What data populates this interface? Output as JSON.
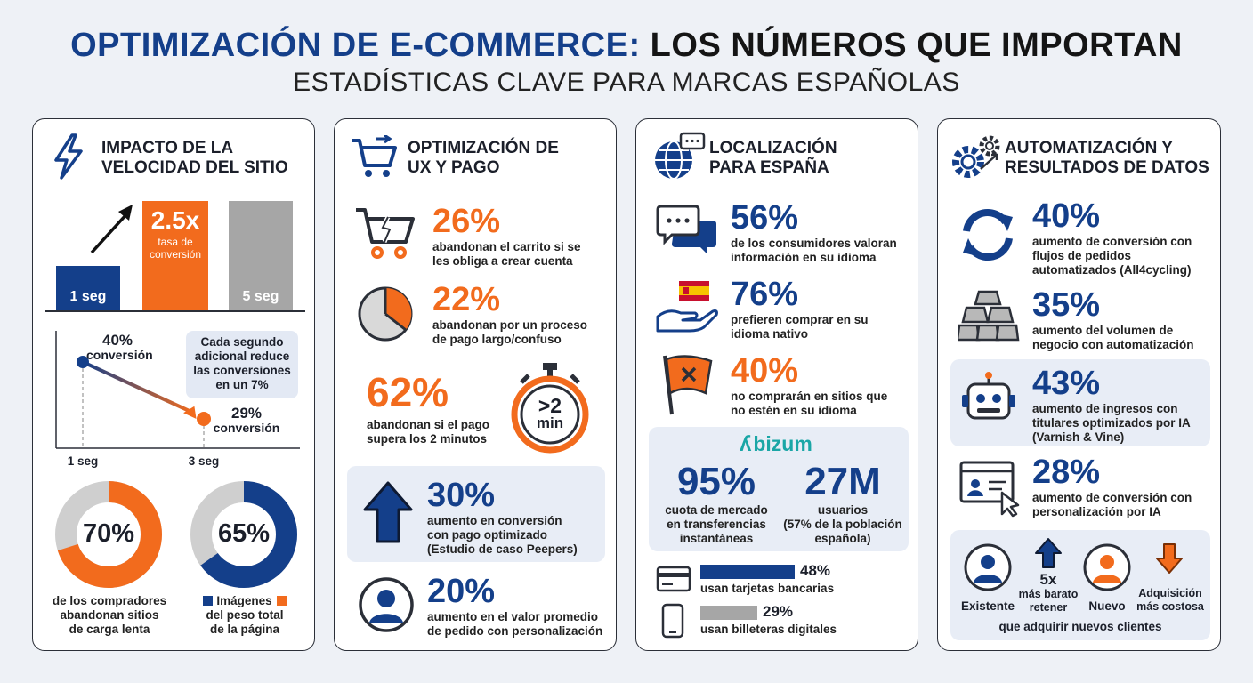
{
  "header": {
    "title_part1": "OPTIMIZACIÓN DE E-COMMERCE:",
    "title_part2": "LOS NÚMEROS QUE IMPORTAN",
    "subtitle": "ESTADÍSTICAS CLAVE PARA MARCAS ESPAÑOLAS"
  },
  "colors": {
    "blue": "#143f8a",
    "orange": "#f26b1d",
    "gray": "#a6a6a6"
  },
  "panel1": {
    "title_l1": "IMPACTO DE LA",
    "title_l2": "VELOCIDAD DEL SITIO",
    "icon": "lightning-icon",
    "bars": {
      "b1": "1 seg",
      "b2_value": "2.5x",
      "b2_l1": "tasa de",
      "b2_l2": "conversión",
      "b3": "5 seg"
    },
    "line": {
      "p1_value": "40%",
      "p1_label": "conversión",
      "p2_value": "29%",
      "p2_label": "conversión",
      "note_l1": "Cada segundo",
      "note_l2": "adicional reduce",
      "note_l3": "las conversiones",
      "note_l4": "en un 7%",
      "x1": "1 seg",
      "x2": "3 seg"
    },
    "donut1": {
      "value": "70%",
      "fraction": 0.7,
      "l1": "de los compradores",
      "l2": "abandonan sitios",
      "l3": "de carga lenta"
    },
    "donut2": {
      "value": "65%",
      "fraction": 0.65,
      "l1": "Imágenes",
      "l2": "del peso total",
      "l3": "de la página"
    }
  },
  "panel2": {
    "title_l1": "OPTIMIZACIÓN DE",
    "title_l2": "UX Y PAGO",
    "icon": "cart-icon",
    "s1": {
      "value": "26%",
      "l1": "abandonan el carrito si se",
      "l2": "les obliga a crear cuenta",
      "icon": "broken-cart-icon"
    },
    "s2": {
      "value": "22%",
      "l1": "abandonan por un proceso",
      "l2": "de pago largo/confuso",
      "icon": "pie-clock-icon"
    },
    "s3": {
      "value": "62%",
      "l1": "abandonan si el pago",
      "l2": "supera los 2 minutos",
      "icon": "stopwatch-icon",
      "timer_l1": ">2",
      "timer_l2": "min"
    },
    "s4": {
      "value": "30%",
      "l1": "aumento en conversión",
      "l2": "con pago optimizado",
      "l3": "(Estudio de caso Peepers)",
      "icon": "arrow-up-icon"
    },
    "s5": {
      "value": "20%",
      "l1": "aumento en el valor promedio",
      "l2": "de pedido con personalización",
      "icon": "user-icon"
    }
  },
  "panel3": {
    "title_l1": "LOCALIZACIÓN",
    "title_l2": "PARA ESPAÑA",
    "icon": "globe-chat-icon",
    "s1": {
      "value": "56%",
      "l1": "de los consumidores valoran",
      "l2": "información en su idioma",
      "icon": "chat-bubbles-icon"
    },
    "s2": {
      "value": "76%",
      "l1": "prefieren comprar en su",
      "l2": "idioma nativo",
      "icon": "hand-flag-icon"
    },
    "s3": {
      "value": "40%",
      "l1": "no comprarán en sitios que",
      "l2": "no estén en su idioma",
      "icon": "x-flag-icon"
    },
    "bizum": {
      "brand": "bizum",
      "v1": "95%",
      "v1_l1": "cuota de mercado",
      "v1_l2": "en transferencias",
      "v1_l3": "instantáneas",
      "v2": "27M",
      "v2_l1": "usuarios",
      "v2_l2": "(57% de la población",
      "v2_l3": "española)"
    },
    "pay1": {
      "value": "48%",
      "fraction": 0.48,
      "label": "usan tarjetas bancarias",
      "icon": "credit-card-icon"
    },
    "pay2": {
      "value": "29%",
      "fraction": 0.29,
      "label": "usan billeteras digitales",
      "icon": "smartphone-icon"
    }
  },
  "panel4": {
    "title_l1": "AUTOMATIZACIÓN Y",
    "title_l2": "RESULTADOS DE DATOS",
    "icon": "gears-icon",
    "s1": {
      "value": "40%",
      "l1": "aumento de conversión con",
      "l2": "flujos de pedidos",
      "l3": "automatizados (All4cycling)",
      "icon": "refresh-icon"
    },
    "s2": {
      "value": "35%",
      "l1": "aumento del volumen de",
      "l2": "negocio con automatización",
      "icon": "gold-bars-icon"
    },
    "s3": {
      "value": "43%",
      "l1": "aumento de ingresos con",
      "l2": "titulares optimizados por IA",
      "l3": "(Varnish & Vine)",
      "icon": "robot-icon"
    },
    "s4": {
      "value": "28%",
      "l1": "aumento de conversión con",
      "l2": "personalización por IA",
      "icon": "browser-user-icon"
    },
    "retention": {
      "existing": "Existente",
      "factor": "5x",
      "cheaper_l1": "más barato",
      "cheaper_l2": "retener",
      "new": "Nuevo",
      "costly_l1": "Adquisición",
      "costly_l2": "más costosa",
      "footer": "que adquirir nuevos clientes"
    }
  }
}
